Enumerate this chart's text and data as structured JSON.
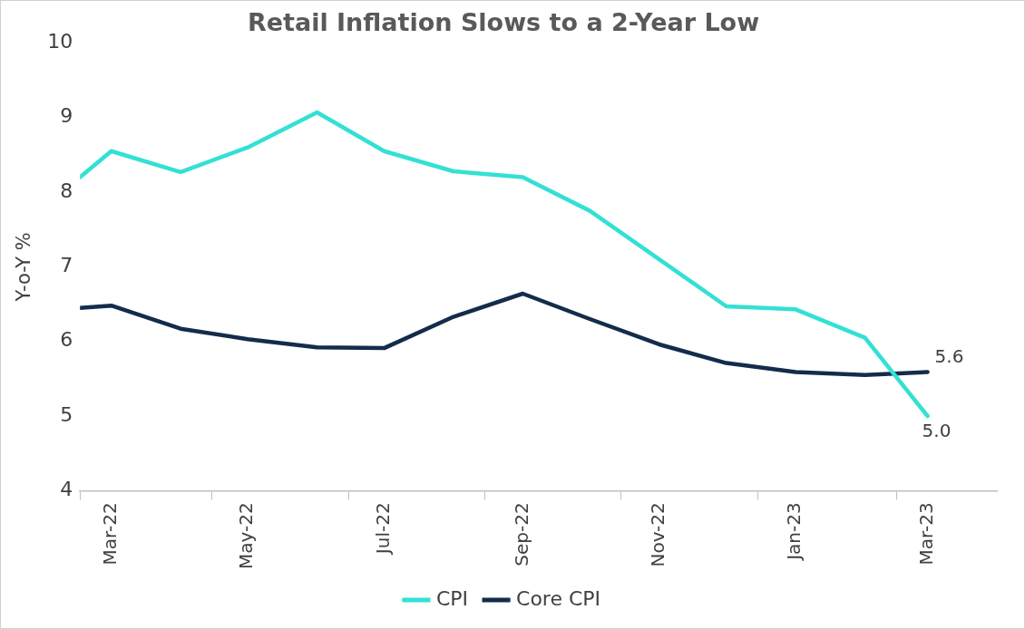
{
  "chart_data": {
    "type": "line",
    "title": "Retail Inflation Slows to a 2-Year Low",
    "ylabel": "Y-o-Y %",
    "x": [
      "2022-02-15",
      "2022-03",
      "2022-04",
      "2022-05",
      "2022-06",
      "2022-07",
      "2022-08",
      "2022-09",
      "2022-10",
      "2022-11",
      "2022-12",
      "2023-01",
      "2023-02",
      "2023-03"
    ],
    "series": [
      {
        "name": "CPI",
        "color": "#33e0d4",
        "values": [
          8.2,
          8.55,
          8.27,
          8.6,
          9.07,
          8.55,
          8.28,
          8.2,
          7.75,
          7.1,
          6.47,
          6.43,
          6.05,
          5.0
        ],
        "value_labels": [
          null,
          null,
          null,
          null,
          null,
          null,
          null,
          null,
          null,
          null,
          null,
          null,
          null,
          "5.0"
        ]
      },
      {
        "name": "Core CPI",
        "color": "#132c4a",
        "values": [
          6.45,
          6.48,
          6.17,
          6.03,
          5.92,
          5.91,
          6.33,
          6.64,
          6.3,
          5.96,
          5.71,
          5.59,
          5.55,
          5.59
        ],
        "value_labels": [
          null,
          null,
          null,
          null,
          null,
          null,
          null,
          null,
          null,
          null,
          null,
          null,
          null,
          "5.6"
        ]
      }
    ],
    "xlim": [
      "2022-02-15",
      "2023-04-01"
    ],
    "xticks": [
      {
        "value": "2022-02-15",
        "label": null
      },
      {
        "value": "2022-03",
        "label": "Mar-22"
      },
      {
        "value": "2022-04-15",
        "label": null
      },
      {
        "value": "2022-05",
        "label": "May-22"
      },
      {
        "value": "2022-06-15",
        "label": null
      },
      {
        "value": "2022-07",
        "label": "Jul-22"
      },
      {
        "value": "2022-08-15",
        "label": null
      },
      {
        "value": "2022-09",
        "label": "Sep-22"
      },
      {
        "value": "2022-10-15",
        "label": null
      },
      {
        "value": "2022-11",
        "label": "Nov-22"
      },
      {
        "value": "2022-12-15",
        "label": null
      },
      {
        "value": "2023-01",
        "label": "Jan-23"
      },
      {
        "value": "2023-02-15",
        "label": null
      },
      {
        "value": "2023-03",
        "label": "Mar-23"
      }
    ],
    "ylim": [
      4,
      10
    ],
    "yticks": [
      4,
      5,
      6,
      7,
      8,
      9,
      10
    ],
    "grid": false,
    "legend": "bottom",
    "marker": "none",
    "line_style": "solid"
  }
}
